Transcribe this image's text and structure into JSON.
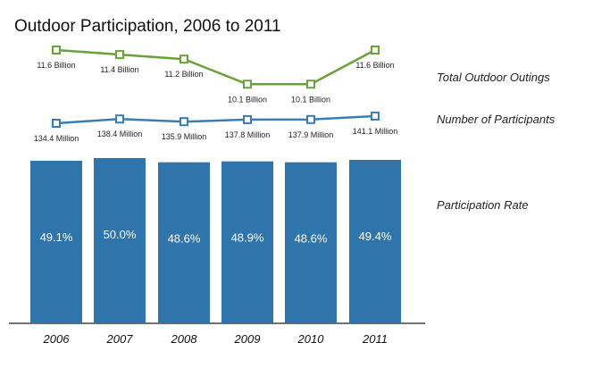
{
  "chart_data": {
    "type": "bar",
    "title": "Outdoor Participation, 2006 to 2011",
    "categories": [
      "2006",
      "2007",
      "2008",
      "2009",
      "2010",
      "2011"
    ],
    "series": [
      {
        "name": "Total Outdoor Outings",
        "type": "line",
        "color": "#6aa23a",
        "values": [
          11.6,
          11.4,
          11.2,
          10.1,
          10.1,
          11.6
        ],
        "labels": [
          "11.6 Billion",
          "11.4 Billion",
          "11.2 Billion",
          "10.1 Billion",
          "10.1 Billion",
          "11.6 Billion"
        ]
      },
      {
        "name": "Number of Participants",
        "type": "line",
        "color": "#3a7db5",
        "values": [
          134.4,
          138.4,
          135.9,
          137.8,
          137.9,
          141.1
        ],
        "labels": [
          "134.4 Million",
          "138.4 Million",
          "135.9 Million",
          "137.8 Million",
          "137.9 Million",
          "141.1 Million"
        ]
      },
      {
        "name": "Participation Rate",
        "type": "bar",
        "color": "#2f74aa",
        "values": [
          49.1,
          50.0,
          48.6,
          48.9,
          48.6,
          49.4
        ],
        "labels": [
          "49.1%",
          "50.0%",
          "48.6%",
          "48.9%",
          "48.6%",
          "49.4%"
        ]
      }
    ],
    "grid": false,
    "legend": "right"
  }
}
